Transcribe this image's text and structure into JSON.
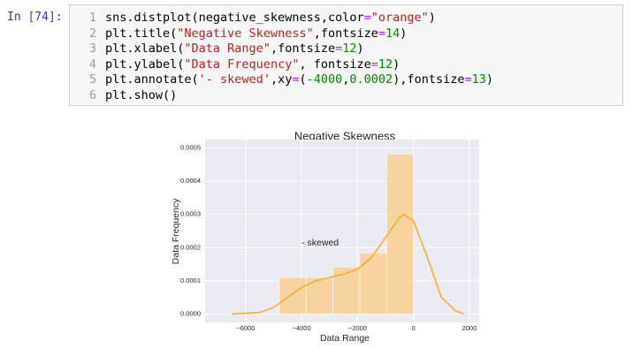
{
  "notebook": {
    "prompt": "In [74]:",
    "line_numbers": [
      1,
      2,
      3,
      4,
      5,
      6
    ],
    "lines": [
      "sns.distplot(negative_skewness,color=\"orange\")",
      "plt.title(\"Negative Skewness\",fontsize=14)",
      "plt.xlabel(\"Data Range\",fontsize=12)",
      "plt.ylabel(\"Data Frequency\", fontsize=12)",
      "plt.annotate('- skewed',xy=(-4000,0.0002),fontsize=13)",
      "plt.show()"
    ]
  },
  "chart_data": {
    "type": "histogram",
    "title": "Negative Skewness",
    "xlabel": "Data Range",
    "ylabel": "Data Frequency",
    "bins": [
      -4800,
      -3840,
      -2880,
      -1920,
      -960,
      0
    ],
    "values": [
      0.00011,
      0.00011,
      0.000142,
      0.000184,
      0.000482
    ],
    "color": "#f8d296",
    "kde": {
      "color": "#ffab2e",
      "x": [
        -6500,
        -5500,
        -5000,
        -4500,
        -4000,
        -3500,
        -3000,
        -2500,
        -2000,
        -1500,
        -1000,
        -500,
        -350,
        0,
        500,
        1000,
        1500,
        1800
      ],
      "values": [
        0,
        5e-06,
        2e-05,
        5e-05,
        8e-05,
        0.0001,
        0.00011,
        0.00012,
        0.000135,
        0.00017,
        0.00023,
        0.00029,
        0.0003,
        0.00028,
        0.00017,
        5e-05,
        1e-05,
        0
      ]
    },
    "annotation": {
      "text": "- skewed",
      "x": -4000,
      "y": 0.0002
    },
    "xlim": [
      -7450,
      2350
    ],
    "ylim": [
      -2.5e-05,
      0.000525
    ],
    "xticks": [
      {
        "value": -6000,
        "label": "−6000"
      },
      {
        "value": -4000,
        "label": "−4000"
      },
      {
        "value": -2000,
        "label": "−2000"
      },
      0,
      2000
    ],
    "yticks": [
      {
        "value": 0,
        "label": "0.0000"
      },
      {
        "value": 0.0001,
        "label": "0.0001"
      },
      {
        "value": 0.0002,
        "label": "0.0002"
      },
      {
        "value": 0.0003,
        "label": "0.0003"
      },
      {
        "value": 0.0004,
        "label": "0.0004"
      },
      {
        "value": 0.0005,
        "label": "0.0005"
      }
    ],
    "grid": true,
    "background": "#eaeaf2"
  }
}
